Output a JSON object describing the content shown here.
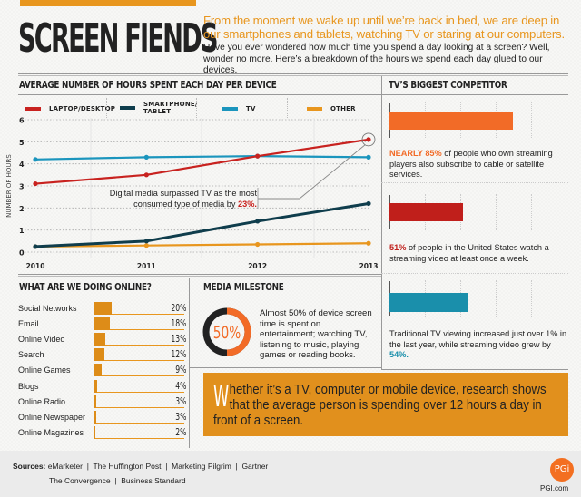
{
  "header": {
    "title": "SCREEN FIENDS",
    "tagline": "From the moment we wake up until we’re back in bed, we are deep in our smartphones and tablets, watching TV or staring at our computers.",
    "intro": "Have you ever wondered how much time you spend a day looking at a screen? Well, wonder no more. Here’s a breakdown of the hours we spend each day glued to our devices."
  },
  "colors": {
    "orange": "#e8961e",
    "laptop": "#c8221f",
    "smartphone": "#0f3d4c",
    "tv": "#1b95bd",
    "other": "#e8961e",
    "competitor_orange": "#f26b27",
    "competitor_red": "#c01f1b",
    "competitor_teal": "#1a8fab"
  },
  "chart_data": {
    "type": "line",
    "title": "AVERAGE NUMBER OF HOURS SPENT EACH DAY PER DEVICE",
    "xlabel": "",
    "ylabel": "NUMBER OF HOURS",
    "x": [
      "2010",
      "2011",
      "2012",
      "2013"
    ],
    "yticks": [
      "0",
      "1",
      "2",
      "3",
      "4",
      "5",
      "6"
    ],
    "ylim": [
      0,
      6
    ],
    "grid": true,
    "legend_position": "top",
    "series": [
      {
        "name": "LAPTOP/DESKTOP",
        "key": "laptop",
        "values": [
          3.1,
          3.5,
          4.35,
          5.1
        ]
      },
      {
        "name": "SMARTPHONE/ TABLET",
        "key": "smartphone",
        "values": [
          0.25,
          0.5,
          1.4,
          2.2
        ]
      },
      {
        "name": "TV",
        "key": "tv",
        "values": [
          4.2,
          4.3,
          4.35,
          4.3
        ]
      },
      {
        "name": "OTHER",
        "key": "other",
        "values": [
          0.25,
          0.3,
          0.35,
          0.4
        ]
      }
    ],
    "annotation": {
      "text": "Digital media surpassed TV as the most consumed type of media by",
      "highlight": "23%.",
      "target_series": "LAPTOP/DESKTOP",
      "target_x": "2013"
    }
  },
  "competitor": {
    "title": "TV’S BIGGEST COMPETITOR",
    "items": [
      {
        "value": 85,
        "color_key": "competitor_orange",
        "highlight": "NEARLY 85%",
        "text": " of people who own streaming players also subscribe to cable or satellite services."
      },
      {
        "value": 51,
        "color_key": "competitor_red",
        "highlight": "51%",
        "text": " of people in the United States watch a streaming video at least once a week."
      },
      {
        "value": 54,
        "color_key": "competitor_teal",
        "text_before": "Traditional TV viewing increased just over 1% in the last year, while streaming video grew by ",
        "highlight": "54%."
      }
    ]
  },
  "online": {
    "title": "WHAT ARE WE DOING ONLINE?",
    "items": [
      {
        "label": "Social Networks",
        "value": 20,
        "display": "20%"
      },
      {
        "label": "Email",
        "value": 18,
        "display": "18%"
      },
      {
        "label": "Online Video",
        "value": 13,
        "display": "13%"
      },
      {
        "label": "Search",
        "value": 12,
        "display": "12%"
      },
      {
        "label": "Online Games",
        "value": 9,
        "display": "9%"
      },
      {
        "label": "Blogs",
        "value": 4,
        "display": "4%"
      },
      {
        "label": "Online Radio",
        "value": 3,
        "display": "3%"
      },
      {
        "label": "Online Newspaper",
        "value": 3,
        "display": "3%"
      },
      {
        "label": "Online Magazines",
        "value": 2,
        "display": "2%"
      }
    ]
  },
  "milestone": {
    "title": "MEDIA MILESTONE",
    "percent_label": "50%",
    "percent_value": 50,
    "text": "Almost 50% of device screen time is spent on entertainment; watching TV, listening to music, playing games or reading books."
  },
  "quote": {
    "drop_cap": "W",
    "text": "hether it’s a TV, computer or mobile device, research shows that the average person is spending over 12 hours a day in front of a screen."
  },
  "footer": {
    "sources_label": "Sources:",
    "sources_line1": "eMarketer  |  The Huffington Post  |  Marketing Pilgrim  |  Gartner",
    "sources_line2": "The Convergence  |  Business Standard",
    "logo_text": "PGi",
    "logo_url": "PGI.com"
  }
}
